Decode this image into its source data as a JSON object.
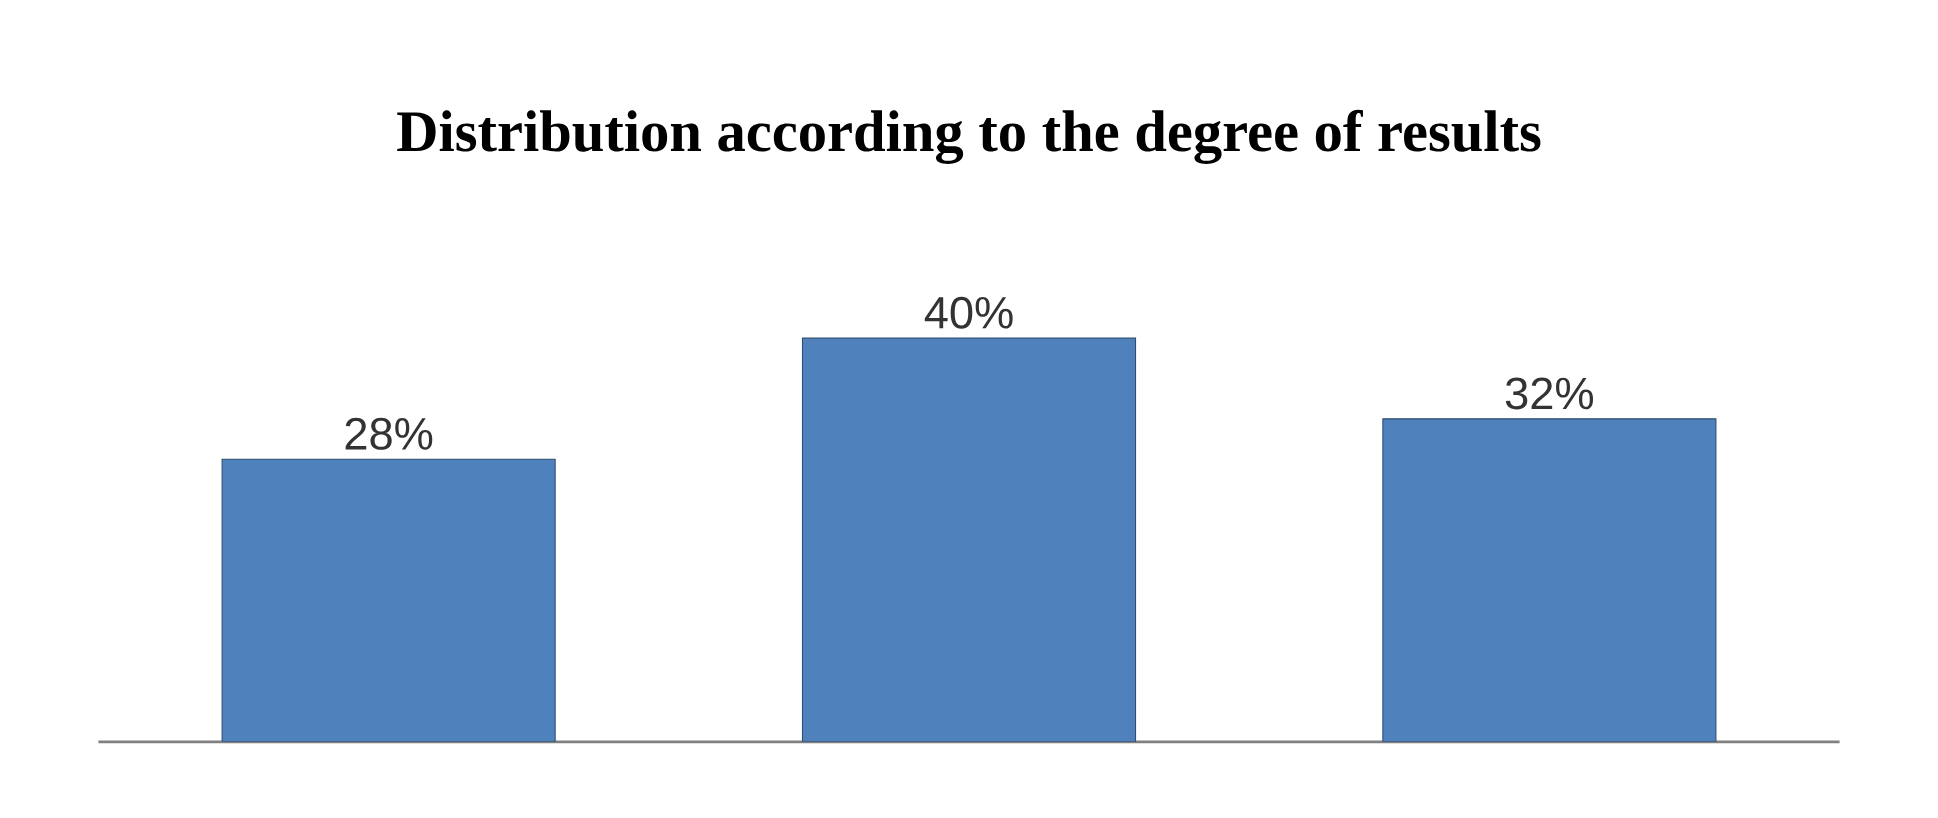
{
  "chart_data": {
    "type": "bar",
    "title": "Distribution  according to the degree of results",
    "categories": [
      null,
      null,
      null
    ],
    "values": [
      28,
      40,
      32
    ],
    "value_labels": [
      "28%",
      "40%",
      "32%"
    ],
    "color": "#4f81bd"
  }
}
